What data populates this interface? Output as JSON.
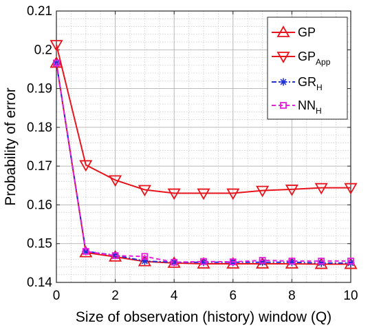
{
  "chart_data": {
    "type": "line",
    "xlabel": "Size of observation (history) window (Q)",
    "ylabel": "Probability of error",
    "xlim": [
      0,
      10
    ],
    "ylim": [
      0.14,
      0.21
    ],
    "xticks": [
      0,
      2,
      4,
      6,
      8,
      10
    ],
    "yticks": [
      0.14,
      0.15,
      0.16,
      0.17,
      0.18,
      0.19,
      0.2,
      0.21
    ],
    "xtick_labels": [
      "0",
      "2",
      "4",
      "6",
      "8",
      "10"
    ],
    "ytick_labels": [
      "0.14",
      "0.15",
      "0.16",
      "0.17",
      "0.18",
      "0.19",
      "0.2",
      "0.21"
    ],
    "grid": true,
    "minor_grid": true,
    "legend_position": "top-right",
    "x": [
      0,
      1,
      2,
      3,
      4,
      5,
      6,
      7,
      8,
      9,
      10
    ],
    "series": [
      {
        "name": "GP",
        "name_sub": "",
        "color": "#e8131b",
        "marker": "triangle-up",
        "line": "solid",
        "values": [
          0.1966,
          0.1477,
          0.1466,
          0.1454,
          0.145,
          0.1448,
          0.1448,
          0.1448,
          0.1448,
          0.1447,
          0.1447
        ]
      },
      {
        "name": "GP",
        "name_sub": "App",
        "color": "#e8131b",
        "marker": "triangle-down",
        "line": "solid",
        "values": [
          0.2013,
          0.1703,
          0.1664,
          0.1639,
          0.163,
          0.163,
          0.163,
          0.1637,
          0.164,
          0.1644,
          0.1644
        ]
      },
      {
        "name": "GR",
        "name_sub": "H",
        "color": "#1f2fd6",
        "marker": "asterisk",
        "line": "dashdot",
        "values": [
          0.1966,
          0.148,
          0.147,
          0.1455,
          0.1452,
          0.1452,
          0.1452,
          0.1452,
          0.1452,
          0.145,
          0.145
        ]
      },
      {
        "name": "NN",
        "name_sub": "H",
        "color": "#e61ee0",
        "marker": "square",
        "line": "dashed",
        "values": [
          0.1966,
          0.148,
          0.1469,
          0.1467,
          0.1452,
          0.1454,
          0.1453,
          0.1457,
          0.1455,
          0.1455,
          0.1455
        ]
      }
    ]
  }
}
